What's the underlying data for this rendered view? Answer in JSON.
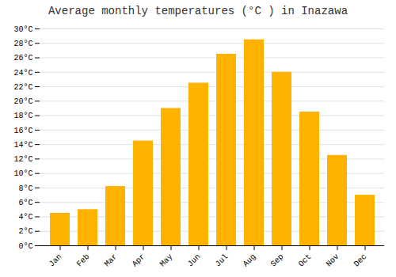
{
  "chart_data": {
    "type": "bar",
    "title": "Average monthly temperatures (°C ) in Inazawa",
    "categories": [
      "Jan",
      "Feb",
      "Mar",
      "Apr",
      "May",
      "Jun",
      "Jul",
      "Aug",
      "Sep",
      "Oct",
      "Nov",
      "Dec"
    ],
    "values": [
      4.5,
      5.0,
      8.2,
      14.5,
      19.0,
      22.5,
      26.5,
      28.5,
      24.0,
      18.5,
      12.5,
      7.0
    ],
    "color": "#FFB300",
    "ylim": [
      0,
      30
    ],
    "yticks": [
      {
        "value": 0,
        "label": "0°C"
      },
      {
        "value": 2,
        "label": "2°C"
      },
      {
        "value": 4,
        "label": "4°C"
      },
      {
        "value": 6,
        "label": "6°C"
      },
      {
        "value": 8,
        "label": "8°C"
      },
      {
        "value": 10,
        "label": "10°C"
      },
      {
        "value": 12,
        "label": "12°C"
      },
      {
        "value": 14,
        "label": "14°C"
      },
      {
        "value": 16,
        "label": "16°C"
      },
      {
        "value": 18,
        "label": "18°C"
      },
      {
        "value": 20,
        "label": "20°C"
      },
      {
        "value": 22,
        "label": "22°C"
      },
      {
        "value": 24,
        "label": "24°C"
      },
      {
        "value": 26,
        "label": "26°C"
      },
      {
        "value": 28,
        "label": "28°C"
      },
      {
        "value": 30,
        "label": "30°C"
      }
    ],
    "grid": true
  }
}
